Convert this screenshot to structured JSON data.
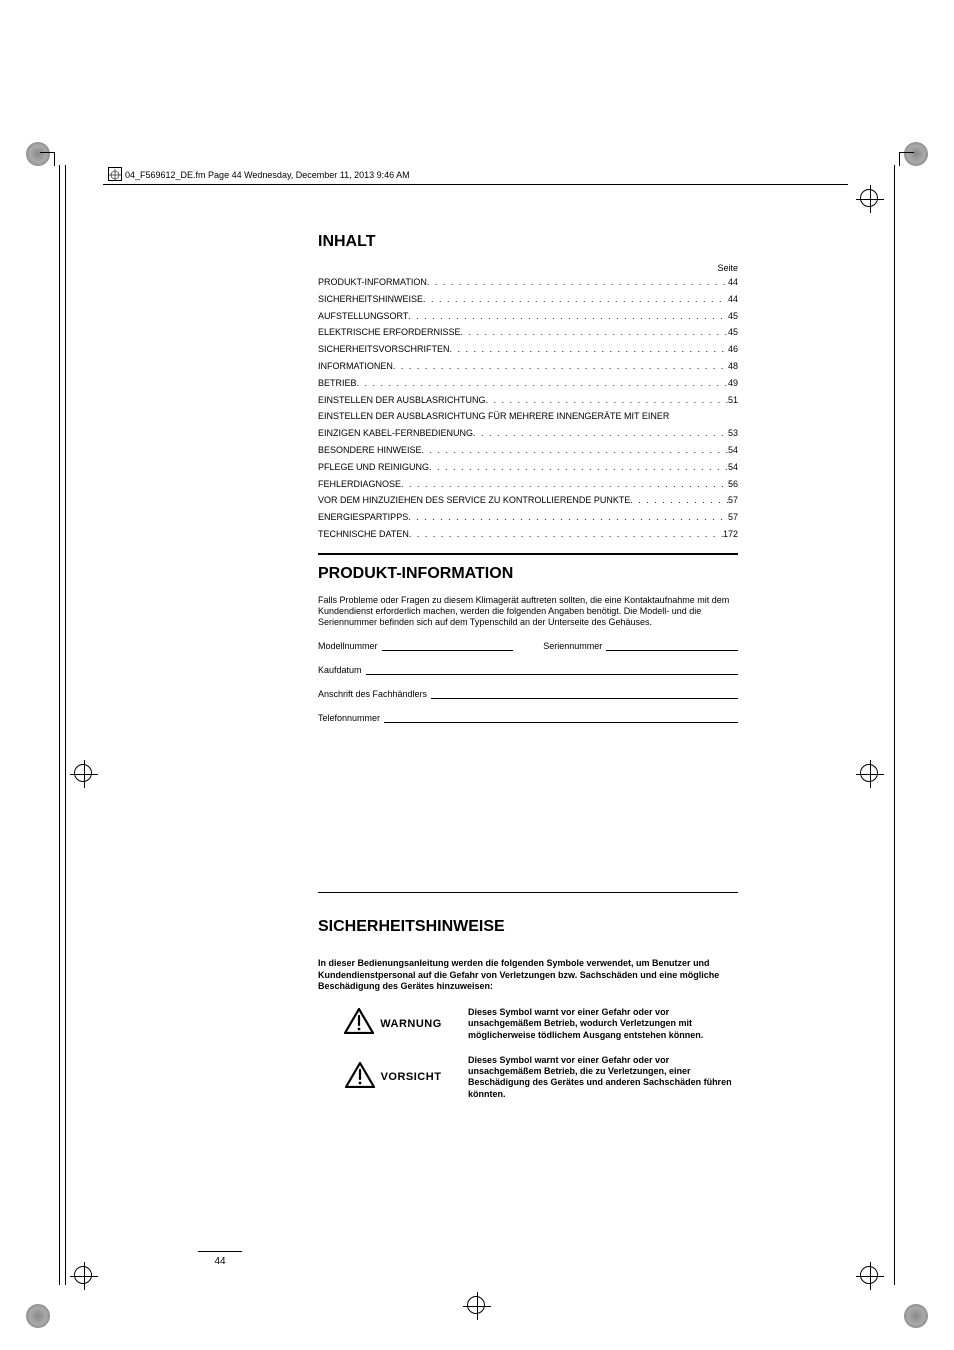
{
  "header_path": "04_F569612_DE.fm  Page 44  Wednesday, December 11, 2013  9:46 AM",
  "page_number": "44",
  "seite_label": "Seite",
  "headings": {
    "inhalt": "INHALT",
    "produkt_information": "PRODUKT-INFORMATION",
    "sicherheitshinweise": "SICHERHEITSHINWEISE"
  },
  "toc": [
    {
      "title": "PRODUKT-INFORMATION",
      "page": "44"
    },
    {
      "title": "SICHERHEITSHINWEISE",
      "page": "44"
    },
    {
      "title": "AUFSTELLUNGSORT",
      "page": "45"
    },
    {
      "title": "ELEKTRISCHE ERFORDERNISSE",
      "page": "45"
    },
    {
      "title": "SICHERHEITSVORSCHRIFTEN",
      "page": "46"
    },
    {
      "title": "INFORMATIONEN",
      "page": "48"
    },
    {
      "title": "BETRIEB",
      "page": "49"
    },
    {
      "title": "EINSTELLEN DER AUSBLASRICHTUNG",
      "page": "51"
    },
    {
      "title": "EINSTELLEN DER AUSBLASRICHTUNG FÜR MEHRERE INNENGERÄTE MIT EINER",
      "page": "",
      "nowrap": true
    },
    {
      "title": "EINZIGEN KABEL-FERNBEDIENUNG",
      "page": "53"
    },
    {
      "title": "BESONDERE HINWEISE",
      "page": "54"
    },
    {
      "title": "PFLEGE UND REINIGUNG",
      "page": "54"
    },
    {
      "title": "FEHLERDIAGNOSE",
      "page": "56"
    },
    {
      "title": "VOR DEM HINZUZIEHEN DES SERVICE ZU KONTROLLIERENDE PUNKTE",
      "page": "57"
    },
    {
      "title": "ENERGIESPARTIPPS",
      "page": "57"
    },
    {
      "title": "TECHNISCHE DATEN",
      "page": "172"
    }
  ],
  "produkt_info_text": "Falls Probleme oder Fragen zu diesem Klimagerät auftreten sollten, die eine Kontaktaufnahme mit dem Kundendienst erforderlich machen, werden die folgenden Angaben benötigt. Die Modell- und die Seriennummer befinden sich auf dem Typenschild an der Unterseite des Gehäuses.",
  "fields": {
    "modellnummer": "Modellnummer",
    "seriennummer": "Seriennummer",
    "kaufdatum": "Kaufdatum",
    "anschrift": "Anschrift des Fachhändlers",
    "telefon": "Telefonnummer"
  },
  "sicherheit_intro": "In dieser Bedienungsanleitung werden die folgenden Symbole verwendet, um Benutzer und Kundendienstpersonal auf die Gefahr von Verletzungen bzw. Sachschäden und eine mögliche Beschädigung des Gerätes hinzuweisen:",
  "symbols": {
    "warnung": {
      "label": "WARNUNG",
      "text": "Dieses Symbol warnt vor einer Gefahr oder vor unsachgemäßem Betrieb, wodurch Verletzungen mit möglicherweise tödlichem Ausgang entstehen können."
    },
    "vorsicht": {
      "label": "VORSICHT",
      "text": "Dieses Symbol warnt vor einer Gefahr oder vor unsachgemäßem Betrieb, die zu Verletzungen, einer Beschädigung des Gerätes und anderen Sachschäden führen könnten."
    }
  },
  "colors": {
    "text": "#000000",
    "background": "#ffffff"
  }
}
